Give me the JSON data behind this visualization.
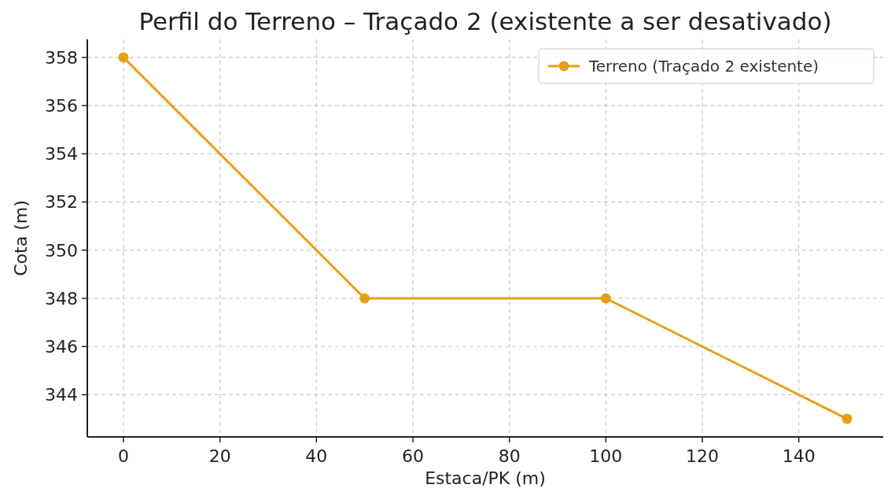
{
  "chart_data": {
    "type": "line",
    "title": "Perfil do Terreno – Traçado 2 (existente a ser desativado)",
    "xlabel": "Estaca/PK (m)",
    "ylabel": "Cota (m)",
    "x": [
      0,
      50,
      100,
      150
    ],
    "series": [
      {
        "name": "Terreno (Traçado 2 existente)",
        "color": "#e69f12",
        "values": [
          358,
          348,
          348,
          343
        ]
      }
    ],
    "xlim": [
      -7.5,
      157.5
    ],
    "xticks": [
      0,
      20,
      40,
      60,
      80,
      100,
      120,
      140
    ],
    "ylim": [
      342.25,
      358.75
    ],
    "yticks": [
      344,
      346,
      348,
      350,
      352,
      354,
      356,
      358
    ],
    "grid": true,
    "legend": "top right",
    "marker": "circle",
    "line_style": "solid"
  }
}
